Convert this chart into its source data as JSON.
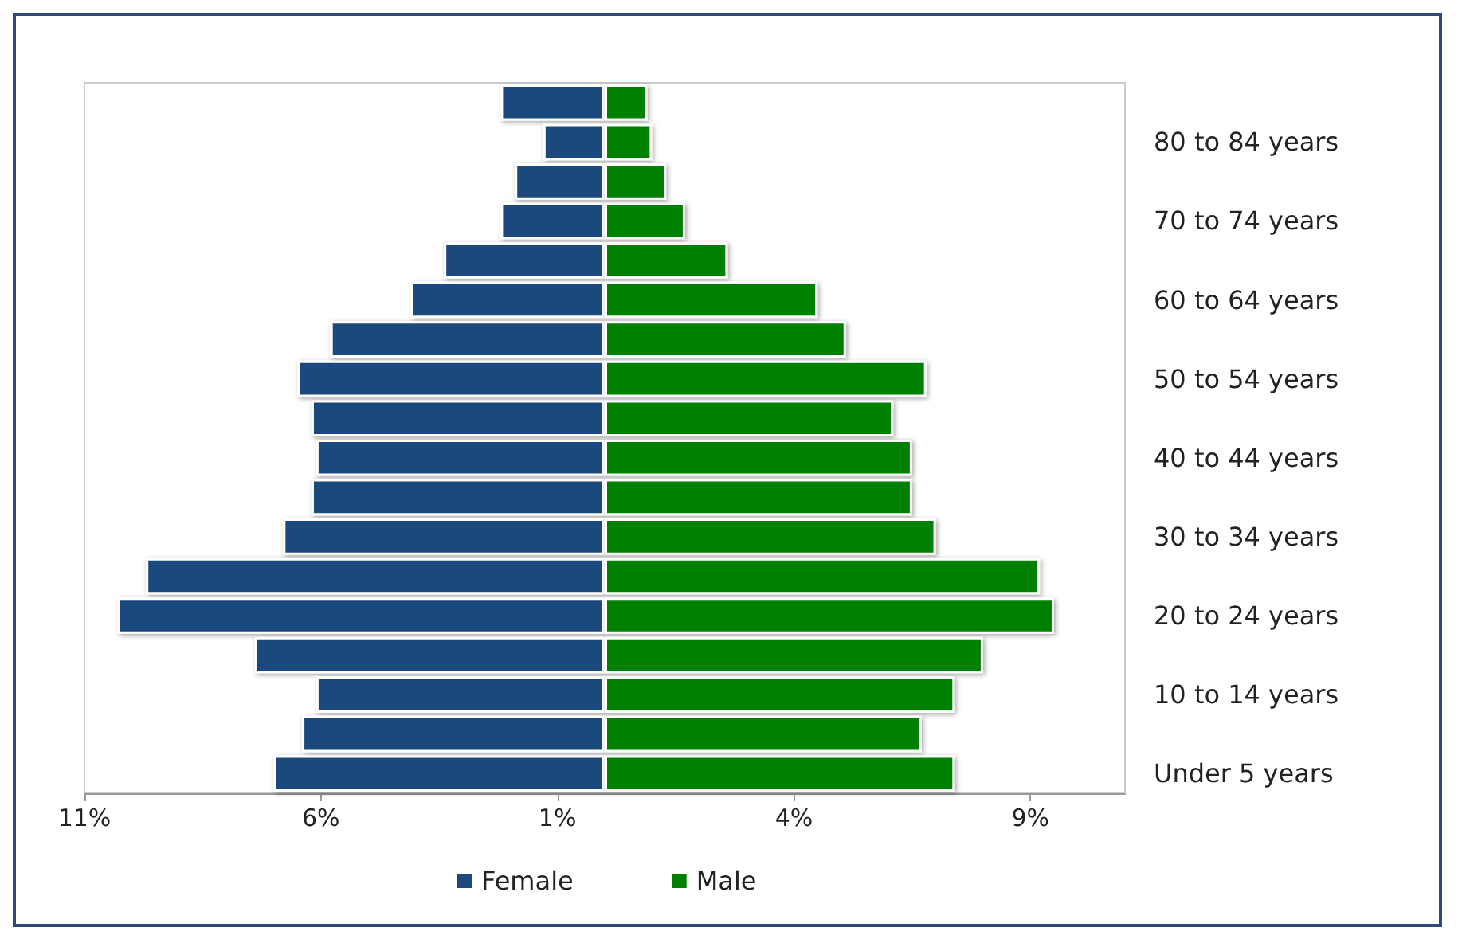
{
  "chart_data": {
    "type": "bar",
    "orientation": "horizontal",
    "categories": [
      null,
      "80 to 84 years",
      null,
      "70 to 74 years",
      null,
      "60 to 64 years",
      null,
      "50 to 54 years",
      null,
      "40 to 44 years",
      null,
      "30 to 34 years",
      null,
      "20 to 24 years",
      null,
      "10 to 14 years",
      null,
      "Under 5 years"
    ],
    "series": [
      {
        "name": "Female",
        "color": "#1f497d",
        "values": [
          -2.2,
          -1.3,
          -1.9,
          -2.2,
          -3.4,
          -4.1,
          -5.8,
          -6.5,
          -6.2,
          -6.1,
          -6.2,
          -6.8,
          -9.7,
          -10.3,
          -7.4,
          -6.1,
          -6.4,
          -7.0
        ]
      },
      {
        "name": "Male",
        "color": "#008000",
        "values": [
          0.9,
          1.0,
          1.3,
          1.7,
          2.6,
          4.5,
          5.1,
          6.8,
          6.1,
          6.5,
          6.5,
          7.0,
          9.2,
          9.5,
          8.0,
          7.4,
          6.7,
          7.4
        ]
      }
    ],
    "xlim": [
      -11,
      11
    ],
    "xticks": [
      {
        "value": -11,
        "label": "11%"
      },
      {
        "value": -6,
        "label": "6%"
      },
      {
        "value": -1,
        "label": "1%"
      },
      {
        "value": 4,
        "label": "4%"
      },
      {
        "value": 9,
        "label": "9%"
      }
    ],
    "grid": false,
    "legend": "bottom",
    "stacked": true
  }
}
